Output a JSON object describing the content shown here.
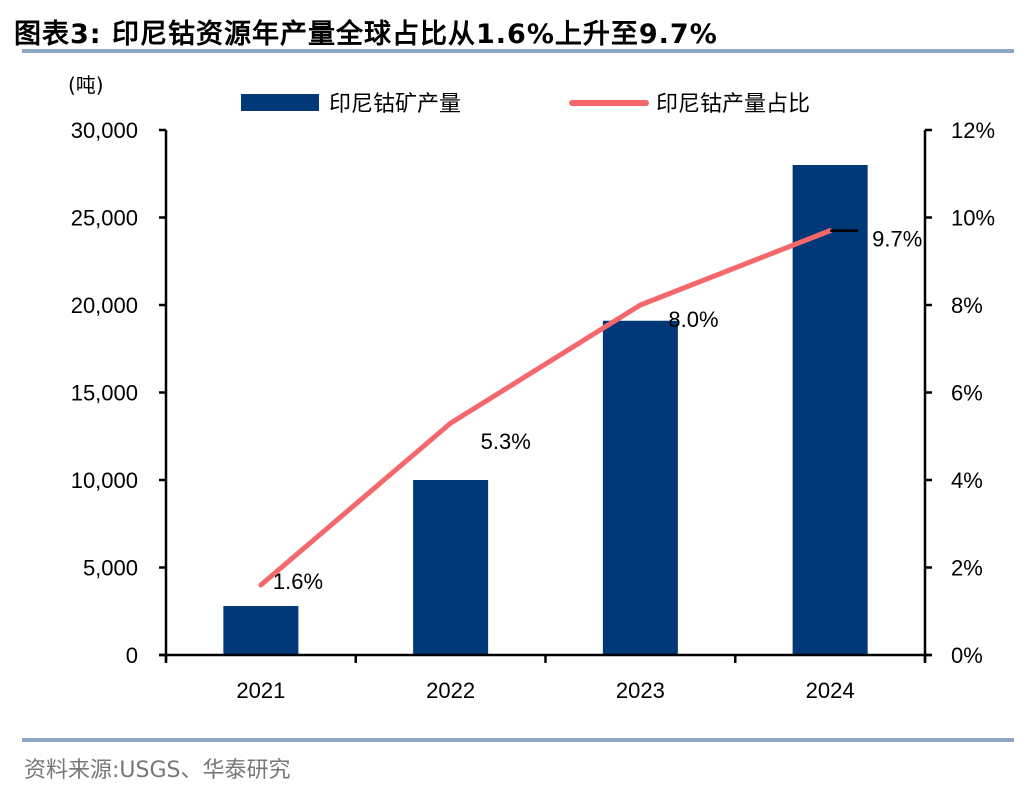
{
  "header": {
    "title": "图表3:  印尼钴资源年产量全球占比从1.6%上升至9.7%"
  },
  "footer": {
    "source": "资料来源:USGS、华泰研究"
  },
  "colors": {
    "bar": "#003878",
    "line": "#f4686c",
    "axis": "#000000",
    "rule": "#8ea7c2"
  },
  "chart_data": {
    "type": "bar+line",
    "title": "印尼钴资源年产量全球占比从1.6%上升至9.7%",
    "categories": [
      "2021",
      "2022",
      "2023",
      "2024"
    ],
    "y_left": {
      "label": "(吨)",
      "range": [
        0,
        30000
      ],
      "ticks": [
        0,
        5000,
        10000,
        15000,
        20000,
        25000,
        30000
      ],
      "tick_labels": [
        "0",
        "5,000",
        "10,000",
        "15,000",
        "20,000",
        "25,000",
        "30,000"
      ]
    },
    "y_right": {
      "label": "",
      "range": [
        0,
        12
      ],
      "ticks": [
        0,
        2,
        4,
        6,
        8,
        10,
        12
      ],
      "tick_labels": [
        "0%",
        "2%",
        "4%",
        "6%",
        "8%",
        "10%",
        "12%"
      ]
    },
    "series": [
      {
        "name": "印尼钴矿产量",
        "type": "bar",
        "axis": "left",
        "values": [
          2800,
          10000,
          19100,
          28000
        ]
      },
      {
        "name": "印尼钴产量占比",
        "type": "line",
        "axis": "right",
        "values": [
          1.6,
          5.3,
          8.0,
          9.7
        ],
        "data_labels": [
          "1.6%",
          "5.3%",
          "8.0%",
          "9.7%"
        ]
      }
    ],
    "legend": {
      "placement": "top",
      "entries": [
        "印尼钴矿产量",
        "印尼钴产量占比"
      ]
    },
    "grid": false
  }
}
